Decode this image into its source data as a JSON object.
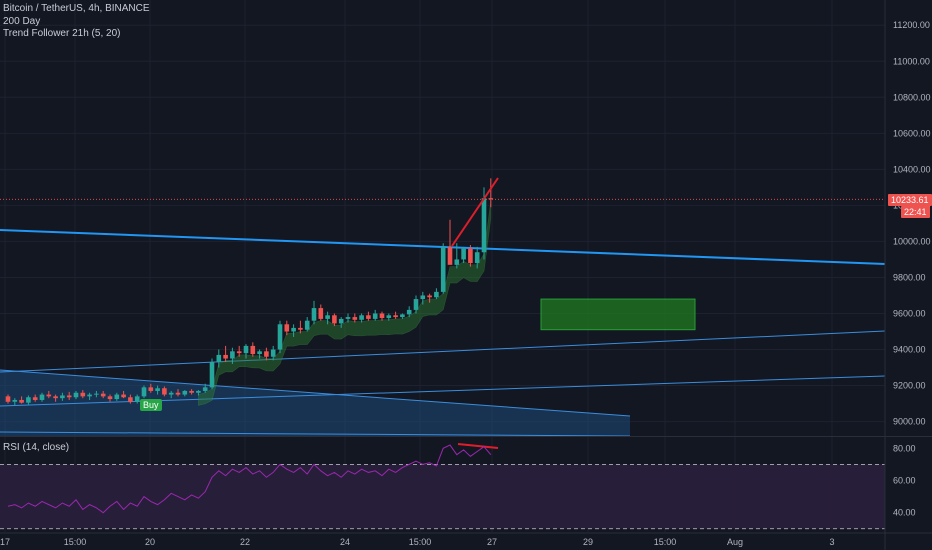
{
  "header": {
    "symbol": "Bitcoin / TetherUS, 4h, BINANCE",
    "indicator_1": "200 Day",
    "indicator_2": "Trend Follower 21h (5, 20)"
  },
  "rsi_label": "RSI (14, close)",
  "price_tag": "10233.61",
  "countdown_tag": "22:41",
  "buy_label": "Buy",
  "colors": {
    "background": "#131722",
    "up": "#26a69a",
    "down": "#ef5350",
    "trendline": "#2196f3",
    "channel": "#3a8dde",
    "zone": "#1f7a1f",
    "rsi": "#9c27b0",
    "annotation": "#e01e2b"
  },
  "chart_data": [
    {
      "type": "candlestick",
      "title": "Bitcoin / TetherUS, 4h, BINANCE",
      "x_ticks": [
        "17",
        "15:00",
        "20",
        "22",
        "24",
        "15:00",
        "27",
        "29",
        "15:00",
        "Aug",
        "3"
      ],
      "y_ticks": [
        9000,
        9200,
        9400,
        9600,
        9800,
        10000,
        10200,
        10400,
        10600,
        10800,
        11000,
        11200
      ],
      "ylim": [
        8920,
        11340
      ],
      "last_price": 10233.61,
      "candles": [
        [
          9140,
          9150,
          9100,
          9110
        ],
        [
          9110,
          9130,
          9090,
          9120
        ],
        [
          9120,
          9140,
          9100,
          9105
        ],
        [
          9105,
          9145,
          9095,
          9135
        ],
        [
          9135,
          9150,
          9110,
          9120
        ],
        [
          9120,
          9160,
          9110,
          9150
        ],
        [
          9150,
          9170,
          9130,
          9140
        ],
        [
          9140,
          9150,
          9110,
          9130
        ],
        [
          9130,
          9160,
          9115,
          9145
        ],
        [
          9145,
          9165,
          9120,
          9135
        ],
        [
          9135,
          9170,
          9125,
          9160
        ],
        [
          9160,
          9175,
          9130,
          9140
        ],
        [
          9140,
          9160,
          9120,
          9150
        ],
        [
          9150,
          9170,
          9135,
          9155
        ],
        [
          9155,
          9170,
          9130,
          9140
        ],
        [
          9140,
          9150,
          9110,
          9125
        ],
        [
          9125,
          9160,
          9115,
          9150
        ],
        [
          9150,
          9170,
          9130,
          9135
        ],
        [
          9135,
          9150,
          9100,
          9110
        ],
        [
          9110,
          9150,
          9100,
          9140
        ],
        [
          9140,
          9200,
          9130,
          9190
        ],
        [
          9190,
          9210,
          9160,
          9170
        ],
        [
          9170,
          9200,
          9150,
          9185
        ],
        [
          9185,
          9195,
          9140,
          9150
        ],
        [
          9150,
          9170,
          9130,
          9160
        ],
        [
          9160,
          9180,
          9140,
          9150
        ],
        [
          9150,
          9175,
          9140,
          9170
        ],
        [
          9170,
          9180,
          9150,
          9160
        ],
        [
          9160,
          9175,
          9145,
          9170
        ],
        [
          9170,
          9210,
          9160,
          9190
        ],
        [
          9190,
          9350,
          9180,
          9330
        ],
        [
          9330,
          9400,
          9300,
          9370
        ],
        [
          9370,
          9420,
          9330,
          9350
        ],
        [
          9350,
          9410,
          9320,
          9390
        ],
        [
          9390,
          9420,
          9360,
          9380
        ],
        [
          9380,
          9430,
          9350,
          9420
        ],
        [
          9420,
          9440,
          9360,
          9375
        ],
        [
          9375,
          9400,
          9350,
          9390
        ],
        [
          9390,
          9410,
          9340,
          9360
        ],
        [
          9360,
          9420,
          9340,
          9400
        ],
        [
          9400,
          9560,
          9380,
          9540
        ],
        [
          9540,
          9560,
          9480,
          9500
        ],
        [
          9500,
          9540,
          9470,
          9520
        ],
        [
          9520,
          9560,
          9490,
          9510
        ],
        [
          9510,
          9580,
          9500,
          9560
        ],
        [
          9560,
          9670,
          9540,
          9630
        ],
        [
          9630,
          9650,
          9560,
          9570
        ],
        [
          9570,
          9610,
          9540,
          9590
        ],
        [
          9590,
          9600,
          9530,
          9545
        ],
        [
          9545,
          9580,
          9520,
          9570
        ],
        [
          9570,
          9600,
          9550,
          9580
        ],
        [
          9580,
          9600,
          9550,
          9565
        ],
        [
          9565,
          9600,
          9550,
          9590
        ],
        [
          9590,
          9610,
          9560,
          9570
        ],
        [
          9570,
          9620,
          9560,
          9600
        ],
        [
          9600,
          9610,
          9560,
          9575
        ],
        [
          9575,
          9600,
          9560,
          9590
        ],
        [
          9590,
          9610,
          9570,
          9580
        ],
        [
          9580,
          9600,
          9570,
          9595
        ],
        [
          9595,
          9640,
          9580,
          9620
        ],
        [
          9620,
          9700,
          9600,
          9680
        ],
        [
          9680,
          9720,
          9650,
          9700
        ],
        [
          9700,
          9710,
          9660,
          9690
        ],
        [
          9690,
          9740,
          9680,
          9720
        ],
        [
          9720,
          9990,
          9710,
          9970
        ],
        [
          9970,
          10120,
          9890,
          9870
        ],
        [
          9870,
          9990,
          9850,
          9900
        ],
        [
          9900,
          9970,
          9880,
          9960
        ],
        [
          9960,
          9980,
          9860,
          9880
        ],
        [
          9880,
          9970,
          9850,
          9940
        ],
        [
          9940,
          10300,
          9900,
          10240
        ],
        [
          10240,
          10350,
          10190,
          10233.61
        ]
      ],
      "horizontal_zone": {
        "from": 9510,
        "to": 9680,
        "x_range": [
          "28",
          "30 15:00"
        ]
      },
      "trendline": {
        "from": [
          "16",
          10050
        ],
        "to": [
          "3 Aug",
          9870
        ]
      }
    },
    {
      "type": "line",
      "title": "RSI (14, close)",
      "y_ticks": [
        40,
        60,
        80
      ],
      "ylim": [
        28,
        87
      ],
      "bands": [
        30,
        70
      ],
      "values": [
        44,
        45,
        43,
        46,
        44,
        47,
        45,
        43,
        46,
        44,
        48,
        42,
        45,
        43,
        40,
        44,
        47,
        42,
        46,
        44,
        50,
        47,
        45,
        48,
        52,
        50,
        48,
        51,
        49,
        53,
        62,
        66,
        63,
        67,
        65,
        68,
        64,
        66,
        62,
        65,
        70,
        67,
        65,
        68,
        64,
        70,
        66,
        63,
        65,
        62,
        66,
        64,
        67,
        65,
        66,
        63,
        67,
        65,
        68,
        70,
        72,
        70,
        71,
        69,
        80,
        82,
        76,
        79,
        75,
        78,
        81,
        76
      ]
    }
  ]
}
